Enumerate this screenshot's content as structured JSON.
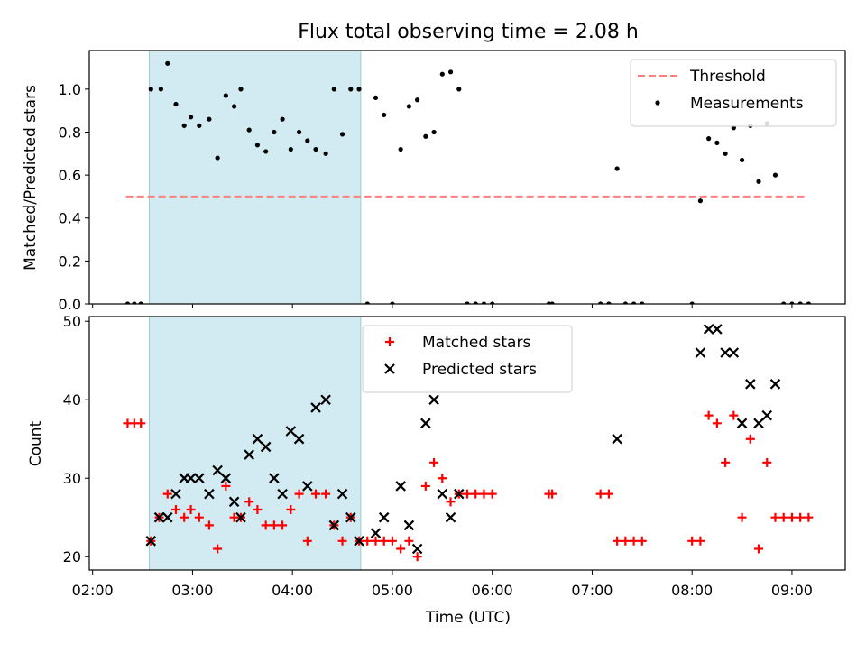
{
  "chart_data": [
    {
      "type": "scatter",
      "title": "Flux total observing time = 2.08 h",
      "ylabel": "Matched/Predicted stars",
      "xlabel": "",
      "ylim": [
        0,
        1.18
      ],
      "xlim": [
        "01:58",
        "09:32"
      ],
      "yticks": [
        "0.0",
        "0.2",
        "0.4",
        "0.6",
        "0.8",
        "1.0"
      ],
      "xticks": [
        "02:00",
        "03:00",
        "04:00",
        "05:00",
        "06:00",
        "07:00",
        "08:00",
        "09:00"
      ],
      "shaded_interval": [
        "02:34",
        "04:41"
      ],
      "legend_position": "upper-right",
      "threshold": {
        "name": "Threshold",
        "value": 0.5,
        "x_range": [
          "02:20",
          "09:09"
        ],
        "color": "#ff7f7f"
      },
      "series": [
        {
          "name": "Measurements",
          "color": "#000000",
          "points": [
            [
              "02:21",
              0
            ],
            [
              "02:25",
              0
            ],
            [
              "02:29",
              0
            ],
            [
              "02:35",
              1.0
            ],
            [
              "02:41",
              1.0
            ],
            [
              "02:45",
              1.12
            ],
            [
              "02:50",
              0.93
            ],
            [
              "02:55",
              0.83
            ],
            [
              "02:59",
              0.87
            ],
            [
              "03:04",
              0.83
            ],
            [
              "03:10",
              0.86
            ],
            [
              "03:15",
              0.68
            ],
            [
              "03:20",
              0.97
            ],
            [
              "03:25",
              0.92
            ],
            [
              "03:29",
              1.0
            ],
            [
              "03:34",
              0.81
            ],
            [
              "03:39",
              0.74
            ],
            [
              "03:44",
              0.71
            ],
            [
              "03:49",
              0.8
            ],
            [
              "03:54",
              0.86
            ],
            [
              "03:59",
              0.72
            ],
            [
              "04:04",
              0.8
            ],
            [
              "04:09",
              0.76
            ],
            [
              "04:14",
              0.72
            ],
            [
              "04:20",
              0.7
            ],
            [
              "04:25",
              1.0
            ],
            [
              "04:30",
              0.79
            ],
            [
              "04:35",
              1.0
            ],
            [
              "04:40",
              1.0
            ],
            [
              "04:45",
              0
            ],
            [
              "04:50",
              0.96
            ],
            [
              "04:55",
              0.88
            ],
            [
              "05:00",
              0
            ],
            [
              "05:05",
              0.72
            ],
            [
              "05:10",
              0.92
            ],
            [
              "05:15",
              0.95
            ],
            [
              "05:20",
              0.78
            ],
            [
              "05:25",
              0.8
            ],
            [
              "05:30",
              1.07
            ],
            [
              "05:35",
              1.08
            ],
            [
              "05:40",
              1.0
            ],
            [
              "05:45",
              0
            ],
            [
              "05:50",
              0
            ],
            [
              "05:55",
              0
            ],
            [
              "06:00",
              0
            ],
            [
              "06:34",
              0
            ],
            [
              "06:36",
              0
            ],
            [
              "07:05",
              0
            ],
            [
              "07:10",
              0
            ],
            [
              "07:15",
              0.63
            ],
            [
              "07:20",
              0
            ],
            [
              "07:25",
              0
            ],
            [
              "07:30",
              0
            ],
            [
              "08:00",
              0
            ],
            [
              "08:05",
              0.48
            ],
            [
              "08:10",
              0.77
            ],
            [
              "08:15",
              0.75
            ],
            [
              "08:20",
              0.7
            ],
            [
              "08:25",
              0.82
            ],
            [
              "08:30",
              0.67
            ],
            [
              "08:35",
              0.83
            ],
            [
              "08:40",
              0.57
            ],
            [
              "08:45",
              0.84
            ],
            [
              "08:50",
              0.6
            ],
            [
              "08:55",
              0
            ],
            [
              "09:00",
              0
            ],
            [
              "09:05",
              0
            ],
            [
              "09:10",
              0
            ]
          ]
        }
      ]
    },
    {
      "type": "scatter",
      "title": "",
      "ylabel": "Count",
      "xlabel": "Time (UTC)",
      "ylim": [
        18.3,
        50.6
      ],
      "xlim": [
        "01:58",
        "09:32"
      ],
      "yticks": [
        "20",
        "30",
        "40",
        "50"
      ],
      "xticks": [
        "02:00",
        "03:00",
        "04:00",
        "05:00",
        "06:00",
        "07:00",
        "08:00",
        "09:00"
      ],
      "shaded_interval": [
        "02:34",
        "04:41"
      ],
      "legend_position": "upper-center",
      "series": [
        {
          "name": "Matched stars",
          "color": "#ff0000",
          "marker": "plus",
          "points": [
            [
              "02:21",
              37
            ],
            [
              "02:25",
              37
            ],
            [
              "02:29",
              37
            ],
            [
              "02:35",
              22
            ],
            [
              "02:40",
              25
            ],
            [
              "02:45",
              28
            ],
            [
              "02:50",
              26
            ],
            [
              "02:55",
              25
            ],
            [
              "02:59",
              26
            ],
            [
              "03:04",
              25
            ],
            [
              "03:10",
              24
            ],
            [
              "03:15",
              21
            ],
            [
              "03:20",
              29
            ],
            [
              "03:25",
              25
            ],
            [
              "03:29",
              25
            ],
            [
              "03:34",
              27
            ],
            [
              "03:39",
              26
            ],
            [
              "03:44",
              24
            ],
            [
              "03:49",
              24
            ],
            [
              "03:54",
              24
            ],
            [
              "03:59",
              26
            ],
            [
              "04:04",
              28
            ],
            [
              "04:09",
              22
            ],
            [
              "04:14",
              28
            ],
            [
              "04:20",
              28
            ],
            [
              "04:25",
              24
            ],
            [
              "04:30",
              22
            ],
            [
              "04:35",
              25
            ],
            [
              "04:40",
              22
            ],
            [
              "04:45",
              22
            ],
            [
              "04:50",
              22
            ],
            [
              "04:55",
              22
            ],
            [
              "05:00",
              22
            ],
            [
              "05:05",
              21
            ],
            [
              "05:10",
              22
            ],
            [
              "05:15",
              20
            ],
            [
              "05:20",
              29
            ],
            [
              "05:25",
              32
            ],
            [
              "05:30",
              30
            ],
            [
              "05:35",
              27
            ],
            [
              "05:40",
              28
            ],
            [
              "05:45",
              28
            ],
            [
              "05:50",
              28
            ],
            [
              "05:55",
              28
            ],
            [
              "06:00",
              28
            ],
            [
              "06:34",
              28
            ],
            [
              "06:36",
              28
            ],
            [
              "07:05",
              28
            ],
            [
              "07:10",
              28
            ],
            [
              "07:15",
              22
            ],
            [
              "07:20",
              22
            ],
            [
              "07:25",
              22
            ],
            [
              "07:30",
              22
            ],
            [
              "08:00",
              22
            ],
            [
              "08:05",
              22
            ],
            [
              "08:10",
              38
            ],
            [
              "08:15",
              37
            ],
            [
              "08:20",
              32
            ],
            [
              "08:25",
              38
            ],
            [
              "08:30",
              25
            ],
            [
              "08:35",
              35
            ],
            [
              "08:40",
              21
            ],
            [
              "08:45",
              32
            ],
            [
              "08:50",
              25
            ],
            [
              "08:55",
              25
            ],
            [
              "09:00",
              25
            ],
            [
              "09:05",
              25
            ],
            [
              "09:10",
              25
            ]
          ]
        },
        {
          "name": "Predicted stars",
          "color": "#000000",
          "marker": "x",
          "points": [
            [
              "02:35",
              22
            ],
            [
              "02:40",
              25
            ],
            [
              "02:45",
              25
            ],
            [
              "02:50",
              28
            ],
            [
              "02:55",
              30
            ],
            [
              "02:59",
              30
            ],
            [
              "03:04",
              30
            ],
            [
              "03:10",
              28
            ],
            [
              "03:15",
              31
            ],
            [
              "03:20",
              30
            ],
            [
              "03:25",
              27
            ],
            [
              "03:29",
              25
            ],
            [
              "03:34",
              33
            ],
            [
              "03:39",
              35
            ],
            [
              "03:44",
              34
            ],
            [
              "03:49",
              30
            ],
            [
              "03:54",
              28
            ],
            [
              "03:59",
              36
            ],
            [
              "04:04",
              35
            ],
            [
              "04:09",
              29
            ],
            [
              "04:14",
              39
            ],
            [
              "04:20",
              40
            ],
            [
              "04:25",
              24
            ],
            [
              "04:30",
              28
            ],
            [
              "04:35",
              25
            ],
            [
              "04:40",
              22
            ],
            [
              "04:50",
              23
            ],
            [
              "04:55",
              25
            ],
            [
              "05:05",
              29
            ],
            [
              "05:10",
              24
            ],
            [
              "05:15",
              21
            ],
            [
              "05:20",
              37
            ],
            [
              "05:25",
              40
            ],
            [
              "05:30",
              28
            ],
            [
              "05:35",
              25
            ],
            [
              "05:40",
              28
            ],
            [
              "07:15",
              35
            ],
            [
              "08:05",
              46
            ],
            [
              "08:10",
              49
            ],
            [
              "08:15",
              49
            ],
            [
              "08:20",
              46
            ],
            [
              "08:25",
              46
            ],
            [
              "08:30",
              37
            ],
            [
              "08:35",
              42
            ],
            [
              "08:40",
              37
            ],
            [
              "08:45",
              38
            ],
            [
              "08:50",
              42
            ]
          ]
        }
      ]
    }
  ]
}
